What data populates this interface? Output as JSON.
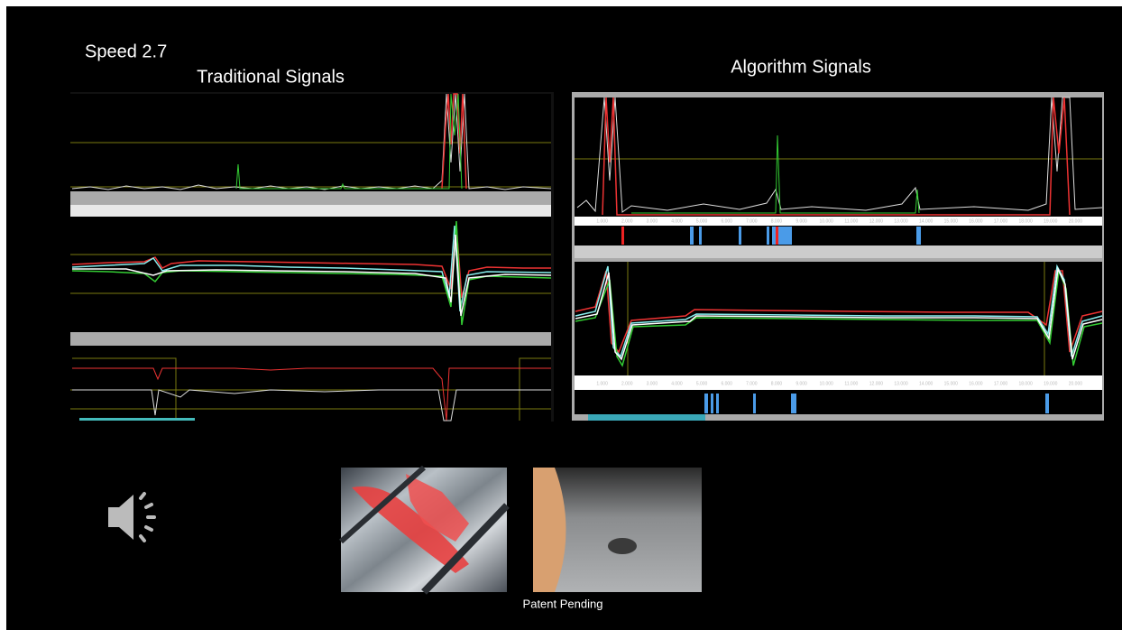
{
  "slide": {
    "speed_label": "Speed 2.7",
    "left_title": "Traditional Signals",
    "right_title": "Algorithm Signals",
    "footer": "Patent Pending",
    "algorithm_plot_1_axis": [
      "1.000",
      "2.000",
      "3.000",
      "4.000",
      "5.000",
      "6.000",
      "7.000",
      "8.000",
      "9.000",
      "10.000",
      "11.000",
      "12.000",
      "13.000",
      "14.000",
      "15.000",
      "16.000",
      "17.000",
      "18.000",
      "19.000",
      "20.000"
    ],
    "algorithm_plot_2_axis": [
      "1.000",
      "2.000",
      "3.000",
      "4.000",
      "5.000",
      "6.000",
      "7.000",
      "8.000",
      "9.000",
      "10.000",
      "11.000",
      "12.000",
      "13.000",
      "14.000",
      "15.000",
      "16.000",
      "17.000",
      "18.000",
      "19.000",
      "20.000"
    ]
  }
}
